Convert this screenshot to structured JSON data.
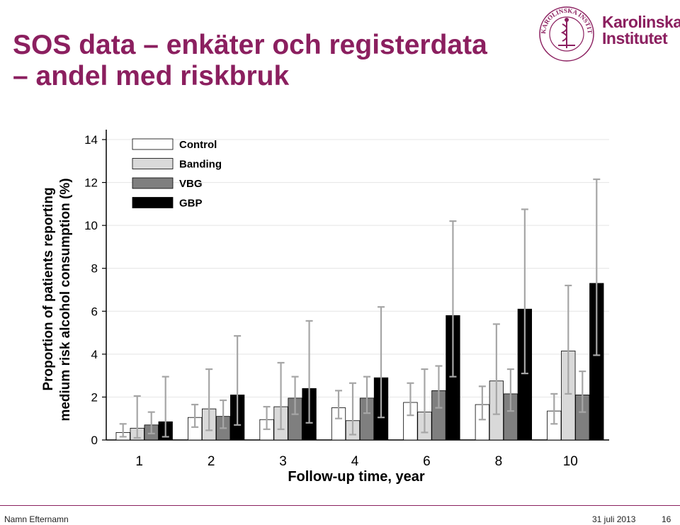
{
  "slide": {
    "title_line1": "SOS data – enkäter och registerdata",
    "title_line2": "– andel med riskbruk",
    "logo_line1": "Karolinska",
    "logo_line2": "Institutet",
    "seal_text": "KAROLINSKA INSTITUTET · ANNO 1810"
  },
  "footer": {
    "author": "Namn Efternamn",
    "date": "31 juli 2013",
    "page": "16"
  },
  "colors": {
    "accent": "#8b1f5f",
    "Control": "#ffffff",
    "Banding": "#d9d9d9",
    "VBG": "#7f7f7f",
    "GBP": "#000000",
    "error_bar": "#a6a6a6"
  },
  "chart_data": {
    "type": "bar",
    "xlabel": "Follow-up time, year",
    "ylabel_line1": "Proportion of patients reporting",
    "ylabel_line2": "medium risk alcohol  consumption  (%)",
    "categories": [
      "1",
      "2",
      "3",
      "4",
      "6",
      "8",
      "10"
    ],
    "ylim": [
      0,
      14
    ],
    "yticks": [
      0,
      2,
      4,
      6,
      8,
      10,
      12,
      14
    ],
    "grid": true,
    "legend_position": "top-left",
    "series": [
      {
        "name": "Control",
        "values": [
          0.35,
          1.05,
          0.95,
          1.5,
          1.75,
          1.65,
          1.35
        ],
        "err_low": [
          0.15,
          0.6,
          0.5,
          1.0,
          1.15,
          0.95,
          0.75
        ],
        "err_high": [
          0.75,
          1.65,
          1.55,
          2.3,
          2.65,
          2.5,
          2.15
        ]
      },
      {
        "name": "Banding",
        "values": [
          0.55,
          1.45,
          1.55,
          0.9,
          1.3,
          2.75,
          4.15
        ],
        "err_low": [
          0.1,
          0.45,
          0.5,
          0.25,
          0.35,
          1.2,
          2.15
        ],
        "err_high": [
          2.05,
          3.3,
          3.6,
          2.65,
          3.3,
          5.4,
          7.2
        ]
      },
      {
        "name": "VBG",
        "values": [
          0.7,
          1.1,
          1.95,
          1.95,
          2.3,
          2.15,
          2.1
        ],
        "err_low": [
          0.3,
          0.55,
          1.2,
          1.25,
          1.5,
          1.35,
          1.3
        ],
        "err_high": [
          1.3,
          1.85,
          2.95,
          2.95,
          3.45,
          3.3,
          3.2
        ]
      },
      {
        "name": "GBP",
        "values": [
          0.85,
          2.1,
          2.4,
          2.9,
          5.8,
          6.1,
          7.3
        ],
        "err_low": [
          0.15,
          0.7,
          0.8,
          1.05,
          2.95,
          3.1,
          3.95
        ],
        "err_high": [
          2.95,
          4.85,
          5.55,
          6.2,
          10.2,
          10.75,
          12.15
        ]
      }
    ]
  }
}
